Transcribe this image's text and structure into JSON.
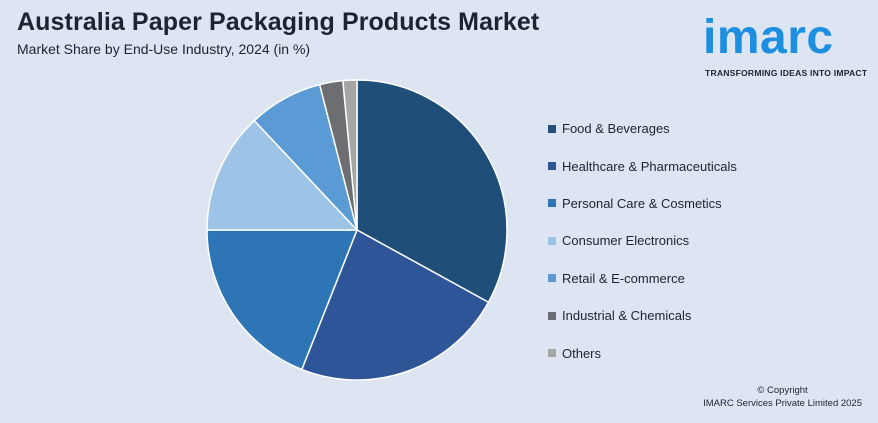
{
  "header": {
    "title": "Australia Paper Packaging Products Market",
    "subtitle": "Market Share by End-Use Industry, 2024 (in %)"
  },
  "logo": {
    "wordmark": "imarc",
    "tagline": "TRANSFORMING IDEAS INTO IMPACT",
    "color": "#1e8fe0"
  },
  "chart_data": {
    "type": "pie",
    "title": "Australia Paper Packaging Products Market",
    "subtitle": "Market Share by End-Use Industry, 2024 (in %)",
    "legend_position": "right",
    "start_angle_deg": 0,
    "direction": "clockwise",
    "slices": [
      {
        "label": "Food & Beverages",
        "value": 33,
        "color": "#1f4e79"
      },
      {
        "label": "Healthcare & Pharmaceuticals",
        "value": 23,
        "color": "#2e5597"
      },
      {
        "label": "Personal Care & Cosmetics",
        "value": 19,
        "color": "#2e75b6"
      },
      {
        "label": "Consumer Electronics",
        "value": 13,
        "color": "#9dc3e6"
      },
      {
        "label": "Retail & E-commerce",
        "value": 8,
        "color": "#5b9bd5"
      },
      {
        "label": "Industrial & Chemicals",
        "value": 2.5,
        "color": "#6d6e71"
      },
      {
        "label": "Others",
        "value": 1.5,
        "color": "#a6a6a6"
      }
    ]
  },
  "footer": {
    "copyright_line1": "© Copyright",
    "copyright_line2": "IMARC Services Private Limited 2025"
  }
}
